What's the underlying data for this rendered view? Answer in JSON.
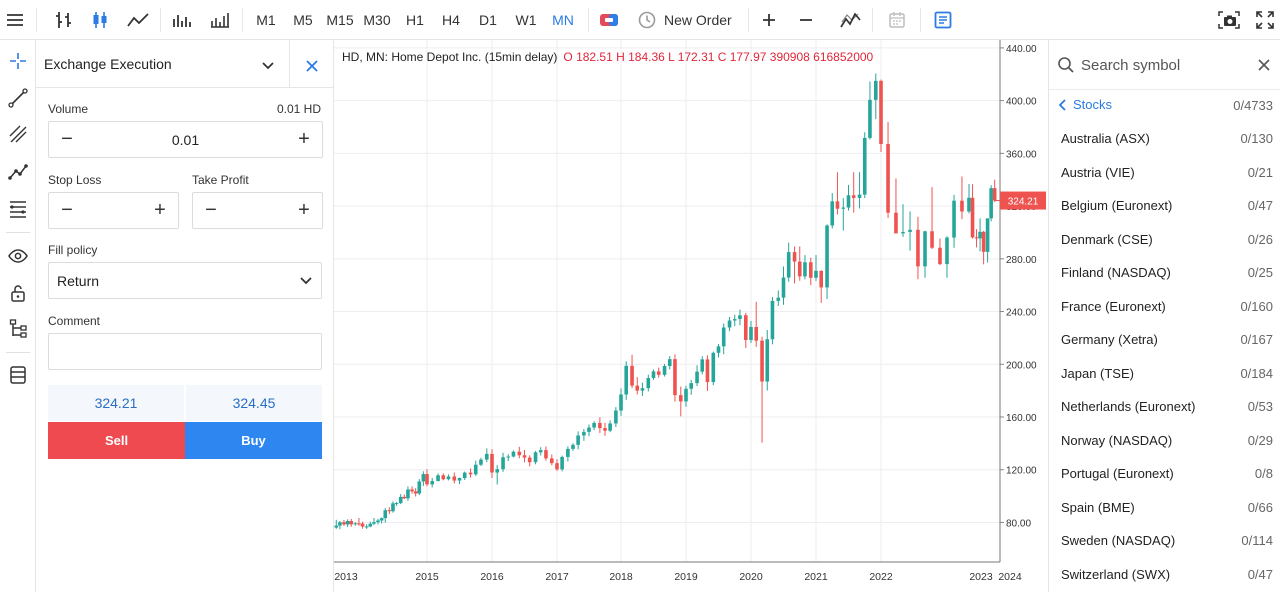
{
  "toolbar": {
    "timeframes": [
      "M1",
      "M5",
      "M15",
      "M30",
      "H1",
      "H4",
      "D1",
      "W1",
      "MN"
    ],
    "active_timeframe": "MN",
    "new_order_label": "New Order"
  },
  "order_panel": {
    "title": "Exchange Execution",
    "volume_label": "Volume",
    "volume_hint": "0.01 HD",
    "volume_value": "0.01",
    "stop_loss_label": "Stop Loss",
    "take_profit_label": "Take Profit",
    "stop_loss_value": "",
    "take_profit_value": "",
    "fill_policy_label": "Fill policy",
    "fill_policy_value": "Return",
    "comment_label": "Comment",
    "comment_value": "",
    "bid": "324.21",
    "ask": "324.45",
    "sell_label": "Sell",
    "buy_label": "Buy",
    "sell_color": "#ef4a50",
    "buy_color": "#2e86f0"
  },
  "chart": {
    "title": "HD, MN: Home Depot Inc. (15min delay)",
    "ohlc": "O 182.51 H 184.36 L 172.31 C 177.97 390908 616852000",
    "price_label": "324.21"
  },
  "chart_data": {
    "type": "candlestick",
    "title": "HD, MN: Home Depot Inc. (15min delay)",
    "y_ticks": [
      "440.00",
      "400.00",
      "360.00",
      "320.00",
      "280.00",
      "240.00",
      "200.00",
      "160.00",
      "120.00",
      "80.00"
    ],
    "y_range": [
      50,
      446
    ],
    "x_ticks": [
      "2013",
      "2015",
      "2016",
      "2017",
      "2018",
      "2019",
      "2020",
      "2021",
      "2022",
      "2023",
      "2024"
    ],
    "last_price": 324.21,
    "up_color": "#26a69a",
    "down_color": "#ef5350",
    "candles": [
      {
        "x": 2013.0,
        "o": 76.1,
        "h": 82.0,
        "l": 75.2,
        "c": 77.6
      },
      {
        "x": 2013.08,
        "o": 77.6,
        "h": 81.1,
        "l": 74.8,
        "c": 80.2
      },
      {
        "x": 2013.17,
        "o": 80.2,
        "h": 81.9,
        "l": 77.4,
        "c": 78.5
      },
      {
        "x": 2013.25,
        "o": 78.5,
        "h": 82.4,
        "l": 76.5,
        "c": 81.1
      },
      {
        "x": 2013.33,
        "o": 81.1,
        "h": 82.7,
        "l": 76.7,
        "c": 78.6
      },
      {
        "x": 2013.42,
        "o": 78.6,
        "h": 80.3,
        "l": 77.6,
        "c": 79.3
      },
      {
        "x": 2013.5,
        "o": 79.3,
        "h": 83.4,
        "l": 77.5,
        "c": 79.2
      },
      {
        "x": 2013.58,
        "o": 79.2,
        "h": 80.6,
        "l": 75.3,
        "c": 76.9
      },
      {
        "x": 2013.67,
        "o": 76.9,
        "h": 78.7,
        "l": 75.1,
        "c": 77.0
      },
      {
        "x": 2013.75,
        "o": 77.0,
        "h": 80.6,
        "l": 76.4,
        "c": 79.0
      },
      {
        "x": 2013.83,
        "o": 79.0,
        "h": 83.4,
        "l": 78.0,
        "c": 80.2
      },
      {
        "x": 2013.92,
        "o": 80.2,
        "h": 82.8,
        "l": 78.5,
        "c": 81.5
      },
      {
        "x": 2014.0,
        "o": 81.5,
        "h": 83.7,
        "l": 79.2,
        "c": 83.3
      },
      {
        "x": 2014.08,
        "o": 83.3,
        "h": 91.0,
        "l": 79.9,
        "c": 89.3
      },
      {
        "x": 2014.17,
        "o": 89.3,
        "h": 91.5,
        "l": 86.3,
        "c": 88.5
      },
      {
        "x": 2014.25,
        "o": 88.5,
        "h": 96.0,
        "l": 87.4,
        "c": 94.5
      },
      {
        "x": 2014.33,
        "o": 94.5,
        "h": 95.7,
        "l": 92.6,
        "c": 94.7
      },
      {
        "x": 2014.42,
        "o": 94.7,
        "h": 101.5,
        "l": 93.9,
        "c": 99.4
      },
      {
        "x": 2014.5,
        "o": 99.4,
        "h": 101.2,
        "l": 97.7,
        "c": 98.3
      },
      {
        "x": 2014.58,
        "o": 98.3,
        "h": 107.4,
        "l": 96.4,
        "c": 105.0
      },
      {
        "x": 2014.67,
        "o": 105.0,
        "h": 107.4,
        "l": 101.9,
        "c": 103.6
      },
      {
        "x": 2014.75,
        "o": 103.6,
        "h": 106.0,
        "l": 99.7,
        "c": 102.0
      },
      {
        "x": 2014.83,
        "o": 102.0,
        "h": 112.9,
        "l": 100.8,
        "c": 111.1
      },
      {
        "x": 2014.92,
        "o": 111.1,
        "h": 118.8,
        "l": 107.7,
        "c": 116.7
      },
      {
        "x": 2015.0,
        "o": 116.7,
        "h": 120.4,
        "l": 107.4,
        "c": 108.9
      },
      {
        "x": 2015.08,
        "o": 108.9,
        "h": 113.8,
        "l": 106.6,
        "c": 111.4
      },
      {
        "x": 2015.17,
        "o": 111.4,
        "h": 117.2,
        "l": 111.2,
        "c": 115.8
      },
      {
        "x": 2015.25,
        "o": 115.8,
        "h": 117.2,
        "l": 111.9,
        "c": 112.8
      },
      {
        "x": 2015.33,
        "o": 112.8,
        "h": 116.5,
        "l": 111.9,
        "c": 114.9
      },
      {
        "x": 2015.42,
        "o": 114.9,
        "h": 117.9,
        "l": 109.6,
        "c": 111.8
      },
      {
        "x": 2015.5,
        "o": 111.8,
        "h": 114.1,
        "l": 109.2,
        "c": 113.7
      },
      {
        "x": 2015.58,
        "o": 113.7,
        "h": 118.6,
        "l": 112.2,
        "c": 117.8
      },
      {
        "x": 2015.67,
        "o": 117.8,
        "h": 120.9,
        "l": 114.0,
        "c": 116.5
      },
      {
        "x": 2015.75,
        "o": 116.5,
        "h": 126.8,
        "l": 115.3,
        "c": 123.8
      },
      {
        "x": 2015.83,
        "o": 123.8,
        "h": 129.1,
        "l": 122.8,
        "c": 127.7
      },
      {
        "x": 2015.92,
        "o": 127.7,
        "h": 136.2,
        "l": 125.7,
        "c": 132.0
      },
      {
        "x": 2016.0,
        "o": 132.0,
        "h": 135.6,
        "l": 113.7,
        "c": 117.9
      },
      {
        "x": 2016.08,
        "o": 117.9,
        "h": 123.5,
        "l": 108.8,
        "c": 120.4
      },
      {
        "x": 2016.17,
        "o": 120.4,
        "h": 132.8,
        "l": 118.4,
        "c": 129.5
      },
      {
        "x": 2016.25,
        "o": 129.5,
        "h": 131.8,
        "l": 126.6,
        "c": 130.0
      },
      {
        "x": 2016.33,
        "o": 130.0,
        "h": 134.6,
        "l": 129.3,
        "c": 133.7
      },
      {
        "x": 2016.42,
        "o": 133.7,
        "h": 137.4,
        "l": 128.7,
        "c": 131.0
      },
      {
        "x": 2016.5,
        "o": 131.0,
        "h": 135.1,
        "l": 125.7,
        "c": 129.2
      },
      {
        "x": 2016.58,
        "o": 129.2,
        "h": 130.9,
        "l": 122.5,
        "c": 125.7
      },
      {
        "x": 2016.67,
        "o": 125.7,
        "h": 134.2,
        "l": 124.1,
        "c": 133.2
      },
      {
        "x": 2016.75,
        "o": 133.2,
        "h": 137.1,
        "l": 130.8,
        "c": 134.9
      },
      {
        "x": 2016.83,
        "o": 134.9,
        "h": 137.6,
        "l": 126.8,
        "c": 128.6
      },
      {
        "x": 2016.92,
        "o": 128.6,
        "h": 131.6,
        "l": 123.4,
        "c": 125.0
      },
      {
        "x": 2017.0,
        "o": 125.0,
        "h": 128.0,
        "l": 119.1,
        "c": 120.3
      },
      {
        "x": 2017.08,
        "o": 120.3,
        "h": 130.7,
        "l": 118.8,
        "c": 129.7
      },
      {
        "x": 2017.17,
        "o": 129.7,
        "h": 137.7,
        "l": 126.3,
        "c": 135.8
      },
      {
        "x": 2017.25,
        "o": 135.8,
        "h": 140.1,
        "l": 134.3,
        "c": 138.9
      },
      {
        "x": 2017.33,
        "o": 138.9,
        "h": 149.1,
        "l": 135.5,
        "c": 146.0
      },
      {
        "x": 2017.42,
        "o": 146.0,
        "h": 150.9,
        "l": 141.9,
        "c": 148.7
      },
      {
        "x": 2017.5,
        "o": 148.7,
        "h": 154.3,
        "l": 145.5,
        "c": 152.0
      },
      {
        "x": 2017.58,
        "o": 152.0,
        "h": 156.7,
        "l": 150.0,
        "c": 155.5
      },
      {
        "x": 2017.67,
        "o": 155.5,
        "h": 159.8,
        "l": 147.9,
        "c": 151.6
      },
      {
        "x": 2017.75,
        "o": 151.6,
        "h": 155.6,
        "l": 145.7,
        "c": 149.6
      },
      {
        "x": 2017.83,
        "o": 149.6,
        "h": 157.5,
        "l": 148.5,
        "c": 155.1
      },
      {
        "x": 2017.92,
        "o": 155.1,
        "h": 167.5,
        "l": 152.4,
        "c": 164.9
      },
      {
        "x": 2018.0,
        "o": 164.9,
        "h": 181.7,
        "l": 160.9,
        "c": 177.1
      },
      {
        "x": 2018.08,
        "o": 177.1,
        "h": 202.3,
        "l": 173.0,
        "c": 198.8
      },
      {
        "x": 2018.17,
        "o": 198.8,
        "h": 207.3,
        "l": 182.0,
        "c": 183.8
      },
      {
        "x": 2018.25,
        "o": 183.8,
        "h": 190.2,
        "l": 177.1,
        "c": 180.0
      },
      {
        "x": 2018.33,
        "o": 180.0,
        "h": 186.0,
        "l": 176.0,
        "c": 181.9
      },
      {
        "x": 2018.42,
        "o": 181.9,
        "h": 192.1,
        "l": 179.4,
        "c": 189.6
      },
      {
        "x": 2018.5,
        "o": 189.6,
        "h": 196.0,
        "l": 188.3,
        "c": 194.6
      },
      {
        "x": 2018.58,
        "o": 194.6,
        "h": 197.5,
        "l": 189.9,
        "c": 192.0
      },
      {
        "x": 2018.67,
        "o": 192.0,
        "h": 200.2,
        "l": 190.7,
        "c": 198.7
      },
      {
        "x": 2018.75,
        "o": 198.7,
        "h": 206.2,
        "l": 196.1,
        "c": 203.9
      },
      {
        "x": 2018.83,
        "o": 203.9,
        "h": 207.5,
        "l": 171.6,
        "c": 176.6
      },
      {
        "x": 2018.92,
        "o": 176.6,
        "h": 183.1,
        "l": 160.5,
        "c": 171.8
      },
      {
        "x": 2019.0,
        "o": 171.8,
        "h": 183.7,
        "l": 167.7,
        "c": 181.4
      },
      {
        "x": 2019.08,
        "o": 181.4,
        "h": 188.2,
        "l": 176.8,
        "c": 185.7
      },
      {
        "x": 2019.17,
        "o": 185.7,
        "h": 199.2,
        "l": 183.5,
        "c": 194.4
      },
      {
        "x": 2019.25,
        "o": 194.4,
        "h": 206.2,
        "l": 192.3,
        "c": 203.7
      },
      {
        "x": 2019.33,
        "o": 203.7,
        "h": 206.8,
        "l": 179.8,
        "c": 186.5
      },
      {
        "x": 2019.42,
        "o": 186.5,
        "h": 209.6,
        "l": 184.1,
        "c": 208.7
      },
      {
        "x": 2019.5,
        "o": 208.7,
        "h": 215.3,
        "l": 205.1,
        "c": 213.6
      },
      {
        "x": 2019.58,
        "o": 213.6,
        "h": 230.9,
        "l": 207.6,
        "c": 227.9
      },
      {
        "x": 2019.67,
        "o": 227.9,
        "h": 235.9,
        "l": 225.1,
        "c": 233.2
      },
      {
        "x": 2019.75,
        "o": 233.2,
        "h": 237.6,
        "l": 228.9,
        "c": 234.3
      },
      {
        "x": 2019.83,
        "o": 234.3,
        "h": 241.5,
        "l": 229.6,
        "c": 237.2
      },
      {
        "x": 2019.92,
        "o": 237.2,
        "h": 239.1,
        "l": 212.3,
        "c": 218.4
      },
      {
        "x": 2020.0,
        "o": 218.4,
        "h": 232.9,
        "l": 216.1,
        "c": 228.3
      },
      {
        "x": 2020.08,
        "o": 228.3,
        "h": 247.4,
        "l": 213.2,
        "c": 217.9
      },
      {
        "x": 2020.17,
        "o": 217.9,
        "h": 220.9,
        "l": 140.6,
        "c": 186.9
      },
      {
        "x": 2020.25,
        "o": 186.9,
        "h": 226.0,
        "l": 180.1,
        "c": 219.0
      },
      {
        "x": 2020.33,
        "o": 219.0,
        "h": 251.0,
        "l": 215.1,
        "c": 248.1
      },
      {
        "x": 2020.42,
        "o": 248.1,
        "h": 256.0,
        "l": 244.2,
        "c": 250.5
      },
      {
        "x": 2020.5,
        "o": 250.5,
        "h": 274.2,
        "l": 245.2,
        "c": 265.8
      },
      {
        "x": 2020.58,
        "o": 265.8,
        "h": 292.3,
        "l": 262.6,
        "c": 285.1
      },
      {
        "x": 2020.67,
        "o": 285.1,
        "h": 289.3,
        "l": 261.3,
        "c": 277.9
      },
      {
        "x": 2020.75,
        "o": 277.9,
        "h": 289.4,
        "l": 263.4,
        "c": 266.7
      },
      {
        "x": 2020.83,
        "o": 266.7,
        "h": 282.8,
        "l": 264.4,
        "c": 277.4
      },
      {
        "x": 2020.92,
        "o": 277.4,
        "h": 280.9,
        "l": 260.0,
        "c": 265.6
      },
      {
        "x": 2021.0,
        "o": 265.6,
        "h": 282.9,
        "l": 263.2,
        "c": 270.9
      },
      {
        "x": 2021.08,
        "o": 270.9,
        "h": 271.3,
        "l": 246.6,
        "c": 258.3
      },
      {
        "x": 2021.17,
        "o": 258.3,
        "h": 306.2,
        "l": 249.5,
        "c": 305.3
      },
      {
        "x": 2021.25,
        "o": 305.3,
        "h": 329.9,
        "l": 303.0,
        "c": 323.6
      },
      {
        "x": 2021.33,
        "o": 323.6,
        "h": 345.7,
        "l": 313.7,
        "c": 318.0
      },
      {
        "x": 2021.42,
        "o": 318.0,
        "h": 326.0,
        "l": 301.4,
        "c": 318.9
      },
      {
        "x": 2021.5,
        "o": 318.9,
        "h": 336.1,
        "l": 316.6,
        "c": 328.2
      },
      {
        "x": 2021.58,
        "o": 328.2,
        "h": 345.7,
        "l": 315.1,
        "c": 326.2
      },
      {
        "x": 2021.67,
        "o": 326.2,
        "h": 345.7,
        "l": 318.2,
        "c": 328.7
      },
      {
        "x": 2021.75,
        "o": 328.7,
        "h": 376.0,
        "l": 326.1,
        "c": 371.7
      },
      {
        "x": 2021.83,
        "o": 371.7,
        "h": 414.5,
        "l": 370.5,
        "c": 400.6
      },
      {
        "x": 2021.92,
        "o": 400.6,
        "h": 420.6,
        "l": 386.0,
        "c": 415.0
      },
      {
        "x": 2022.0,
        "o": 415.0,
        "h": 416.0,
        "l": 361.0,
        "c": 367.1
      },
      {
        "x": 2022.08,
        "o": 367.1,
        "h": 383.8,
        "l": 311.0,
        "c": 315.0
      },
      {
        "x": 2022.17,
        "o": 315.0,
        "h": 341.0,
        "l": 299.3,
        "c": 299.3
      },
      {
        "x": 2022.25,
        "o": 299.3,
        "h": 321.4,
        "l": 296.6,
        "c": 300.4
      },
      {
        "x": 2022.33,
        "o": 300.4,
        "h": 316.0,
        "l": 286.1,
        "c": 302.0
      },
      {
        "x": 2022.42,
        "o": 302.0,
        "h": 311.9,
        "l": 264.5,
        "c": 274.3
      },
      {
        "x": 2022.5,
        "o": 274.3,
        "h": 301.3,
        "l": 265.6,
        "c": 300.9
      },
      {
        "x": 2022.58,
        "o": 300.9,
        "h": 334.4,
        "l": 287.4,
        "c": 288.4
      },
      {
        "x": 2022.67,
        "o": 288.4,
        "h": 295.4,
        "l": 275.2,
        "c": 276.0
      },
      {
        "x": 2022.75,
        "o": 276.0,
        "h": 297.1,
        "l": 265.6,
        "c": 296.1
      },
      {
        "x": 2022.83,
        "o": 296.1,
        "h": 328.5,
        "l": 288.4,
        "c": 324.1
      },
      {
        "x": 2022.92,
        "o": 324.1,
        "h": 342.5,
        "l": 310.1,
        "c": 315.9
      },
      {
        "x": 2023.0,
        "o": 315.9,
        "h": 336.8,
        "l": 314.4,
        "c": 326.3
      },
      {
        "x": 2023.08,
        "o": 326.3,
        "h": 336.6,
        "l": 295.3,
        "c": 296.3
      },
      {
        "x": 2023.17,
        "o": 296.3,
        "h": 302.5,
        "l": 288.7,
        "c": 295.5
      },
      {
        "x": 2023.25,
        "o": 295.5,
        "h": 310.7,
        "l": 285.7,
        "c": 300.5
      },
      {
        "x": 2023.33,
        "o": 300.5,
        "h": 301.2,
        "l": 275.8,
        "c": 285.3
      },
      {
        "x": 2023.42,
        "o": 285.3,
        "h": 310.4,
        "l": 277.2,
        "c": 310.7
      },
      {
        "x": 2023.5,
        "o": 310.7,
        "h": 335.9,
        "l": 308.4,
        "c": 333.6
      },
      {
        "x": 2023.58,
        "o": 333.6,
        "h": 340.0,
        "l": 323.0,
        "c": 324.2
      }
    ]
  },
  "watchlist": {
    "search_placeholder": "Search symbol",
    "category": "Stocks",
    "category_count": "0/4733",
    "items": [
      {
        "name": "Australia (ASX)",
        "count": "0/130"
      },
      {
        "name": "Austria (VIE)",
        "count": "0/21"
      },
      {
        "name": "Belgium (Euronext)",
        "count": "0/47"
      },
      {
        "name": "Denmark (CSE)",
        "count": "0/26"
      },
      {
        "name": "Finland (NASDAQ)",
        "count": "0/25"
      },
      {
        "name": "France (Euronext)",
        "count": "0/160"
      },
      {
        "name": "Germany (Xetra)",
        "count": "0/167"
      },
      {
        "name": "Japan (TSE)",
        "count": "0/184"
      },
      {
        "name": "Netherlands (Euronext)",
        "count": "0/53"
      },
      {
        "name": "Norway (NASDAQ)",
        "count": "0/29"
      },
      {
        "name": "Portugal (Euronext)",
        "count": "0/8"
      },
      {
        "name": "Spain (BME)",
        "count": "0/66"
      },
      {
        "name": "Sweden (NASDAQ)",
        "count": "0/114"
      },
      {
        "name": "Switzerland (SWX)",
        "count": "0/47"
      }
    ]
  }
}
